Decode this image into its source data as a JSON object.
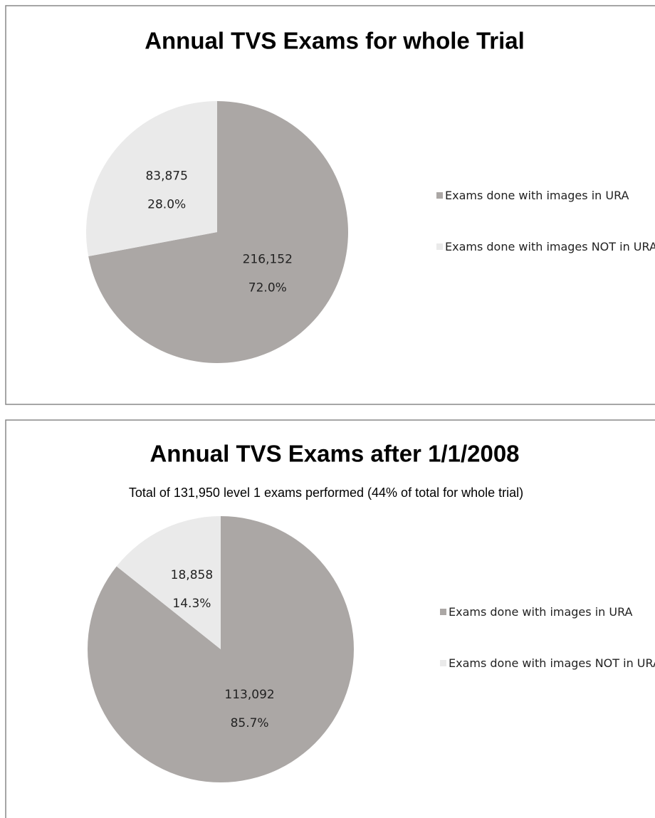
{
  "chart_data": [
    {
      "type": "pie",
      "title": "Annual TVS Exams for whole Trial",
      "categories": [
        "Exams done with images in URA",
        "Exams done with images NOT in URA"
      ],
      "values": [
        216152,
        83875
      ],
      "value_labels": [
        "216,152",
        "83,875"
      ],
      "percents": [
        72.0,
        28.0
      ],
      "percent_labels": [
        "72.0%",
        "28.0%"
      ],
      "colors": [
        "#aba7a5",
        "#eaeaea"
      ],
      "legend": "right"
    },
    {
      "type": "pie",
      "title": "Annual TVS Exams after 1/1/2008",
      "subtitle": "Total of 131,950  level 1 exams performed (44% of total for whole trial)",
      "categories": [
        "Exams done with images in URA",
        "Exams done with images NOT in URA"
      ],
      "values": [
        113092,
        18858
      ],
      "value_labels": [
        "113,092",
        "18,858"
      ],
      "percents": [
        85.7,
        14.3
      ],
      "percent_labels": [
        "85.7%",
        "14.3%"
      ],
      "colors": [
        "#aba7a5",
        "#eaeaea"
      ],
      "legend": "right"
    }
  ]
}
